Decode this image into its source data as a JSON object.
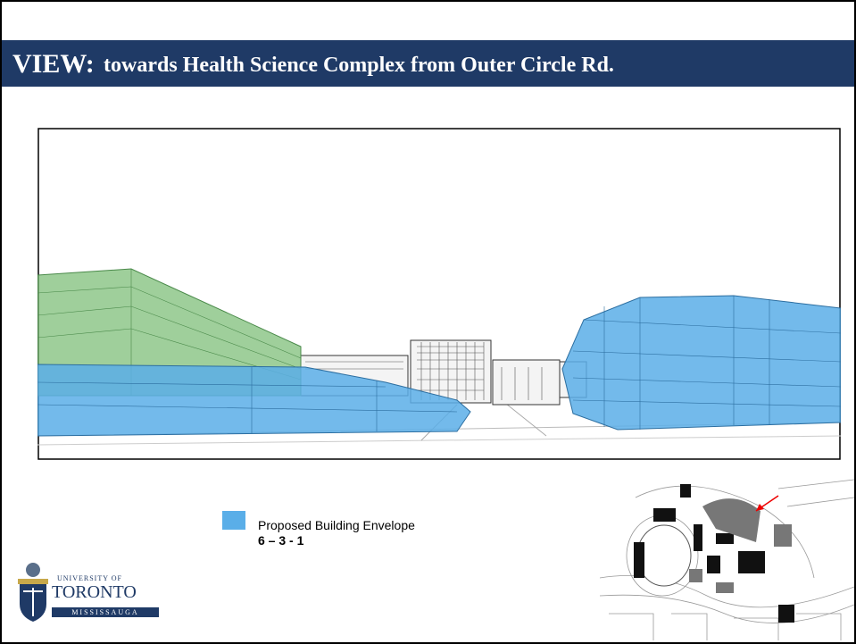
{
  "header": {
    "title_prefix": "VIEW:",
    "title": "towards Health Science Complex from Outer Circle Rd."
  },
  "legend": {
    "label": "Proposed Building Envelope",
    "sublabel": "6 – 3 - 1"
  },
  "logo": {
    "line1": "UNIVERSITY OF",
    "line2": "TORONTO",
    "line3": "MISSISSAUGA"
  }
}
